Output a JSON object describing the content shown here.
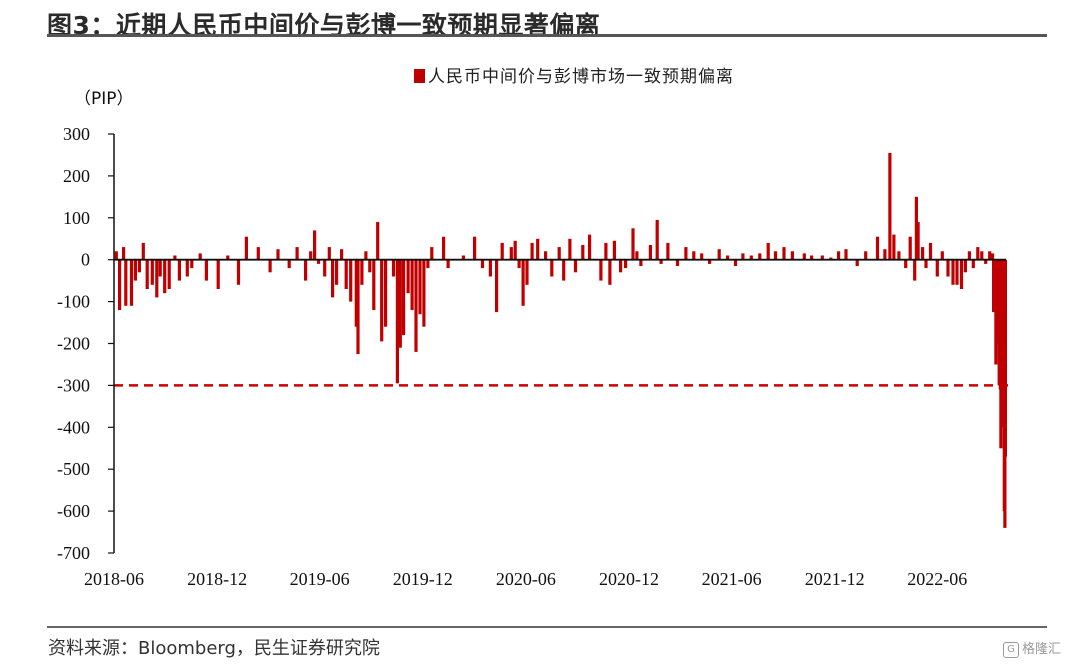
{
  "figure": {
    "title": "图3：近期人民币中间价与彭博一致预期显著偏离",
    "source": "资料来源：Bloomberg，民生证券研究院",
    "watermark": "格隆汇"
  },
  "chart_data": {
    "type": "bar",
    "ylabel": "（PIP）",
    "ylim": [
      -700,
      300
    ],
    "yticks": [
      300,
      200,
      100,
      0,
      -100,
      -200,
      -300,
      -400,
      -500,
      -600,
      -700
    ],
    "x_range": [
      "2018-06",
      "2022-10"
    ],
    "x_tick_labels": [
      "2018-06",
      "2018-12",
      "2019-06",
      "2019-12",
      "2020-06",
      "2020-12",
      "2021-06",
      "2021-12",
      "2022-06"
    ],
    "legend": {
      "position": "top-center"
    },
    "reference_line": {
      "y": -300,
      "style": "dashed",
      "color": "#cc0000"
    },
    "colors": {
      "bar": "#c00000",
      "axis": "#111111",
      "reference": "#cc0000"
    },
    "series": [
      {
        "name": "人民币中间价与彭博市场一致预期偏离",
        "points": [
          [
            "2018-06-05",
            20
          ],
          [
            "2018-06-11",
            -120
          ],
          [
            "2018-06-18",
            30
          ],
          [
            "2018-06-22",
            -110
          ],
          [
            "2018-07-02",
            -110
          ],
          [
            "2018-07-09",
            -50
          ],
          [
            "2018-07-16",
            -30
          ],
          [
            "2018-07-23",
            40
          ],
          [
            "2018-07-30",
            -70
          ],
          [
            "2018-08-08",
            -60
          ],
          [
            "2018-08-16",
            -90
          ],
          [
            "2018-08-22",
            -40
          ],
          [
            "2018-08-30",
            -80
          ],
          [
            "2018-09-07",
            -70
          ],
          [
            "2018-09-17",
            10
          ],
          [
            "2018-09-25",
            -50
          ],
          [
            "2018-10-09",
            -40
          ],
          [
            "2018-10-17",
            -20
          ],
          [
            "2018-11-01",
            15
          ],
          [
            "2018-11-12",
            -50
          ],
          [
            "2018-12-03",
            -70
          ],
          [
            "2018-12-20",
            10
          ],
          [
            "2019-01-08",
            -60
          ],
          [
            "2019-01-22",
            55
          ],
          [
            "2019-02-12",
            30
          ],
          [
            "2019-03-05",
            -30
          ],
          [
            "2019-03-19",
            25
          ],
          [
            "2019-04-08",
            -20
          ],
          [
            "2019-04-22",
            30
          ],
          [
            "2019-05-07",
            -50
          ],
          [
            "2019-05-16",
            20
          ],
          [
            "2019-05-23",
            70
          ],
          [
            "2019-05-30",
            -10
          ],
          [
            "2019-06-10",
            -40
          ],
          [
            "2019-06-18",
            30
          ],
          [
            "2019-06-24",
            -90
          ],
          [
            "2019-07-01",
            -60
          ],
          [
            "2019-07-10",
            25
          ],
          [
            "2019-07-18",
            -70
          ],
          [
            "2019-07-26",
            -100
          ],
          [
            "2019-08-05",
            -160
          ],
          [
            "2019-08-08",
            -225
          ],
          [
            "2019-08-15",
            -60
          ],
          [
            "2019-08-22",
            20
          ],
          [
            "2019-08-29",
            -30
          ],
          [
            "2019-09-05",
            -120
          ],
          [
            "2019-09-12",
            90
          ],
          [
            "2019-09-19",
            -195
          ],
          [
            "2019-09-26",
            -160
          ],
          [
            "2019-10-10",
            -40
          ],
          [
            "2019-10-17",
            -295
          ],
          [
            "2019-10-22",
            -210
          ],
          [
            "2019-10-28",
            -180
          ],
          [
            "2019-11-05",
            -80
          ],
          [
            "2019-11-12",
            -120
          ],
          [
            "2019-11-19",
            -220
          ],
          [
            "2019-11-26",
            -130
          ],
          [
            "2019-12-03",
            -160
          ],
          [
            "2019-12-10",
            -20
          ],
          [
            "2019-12-17",
            30
          ],
          [
            "2020-01-07",
            55
          ],
          [
            "2020-01-15",
            -20
          ],
          [
            "2020-02-11",
            10
          ],
          [
            "2020-03-02",
            55
          ],
          [
            "2020-03-16",
            -20
          ],
          [
            "2020-03-30",
            -40
          ],
          [
            "2020-04-10",
            -125
          ],
          [
            "2020-04-20",
            40
          ],
          [
            "2020-05-06",
            30
          ],
          [
            "2020-05-13",
            45
          ],
          [
            "2020-05-20",
            -20
          ],
          [
            "2020-05-27",
            -110
          ],
          [
            "2020-06-03",
            -60
          ],
          [
            "2020-06-12",
            40
          ],
          [
            "2020-06-22",
            50
          ],
          [
            "2020-07-06",
            20
          ],
          [
            "2020-07-17",
            -40
          ],
          [
            "2020-07-30",
            30
          ],
          [
            "2020-08-07",
            -50
          ],
          [
            "2020-08-18",
            50
          ],
          [
            "2020-08-28",
            -30
          ],
          [
            "2020-09-10",
            35
          ],
          [
            "2020-09-22",
            60
          ],
          [
            "2020-10-12",
            -50
          ],
          [
            "2020-10-21",
            40
          ],
          [
            "2020-10-28",
            -60
          ],
          [
            "2020-11-05",
            45
          ],
          [
            "2020-11-16",
            -30
          ],
          [
            "2020-11-25",
            -20
          ],
          [
            "2020-12-08",
            75
          ],
          [
            "2020-12-15",
            20
          ],
          [
            "2020-12-22",
            -15
          ],
          [
            "2021-01-08",
            35
          ],
          [
            "2021-01-20",
            95
          ],
          [
            "2021-01-27",
            -10
          ],
          [
            "2021-02-08",
            40
          ],
          [
            "2021-02-25",
            -15
          ],
          [
            "2021-03-12",
            30
          ],
          [
            "2021-03-26",
            20
          ],
          [
            "2021-04-09",
            15
          ],
          [
            "2021-04-23",
            -10
          ],
          [
            "2021-05-10",
            25
          ],
          [
            "2021-05-25",
            10
          ],
          [
            "2021-06-08",
            -15
          ],
          [
            "2021-06-21",
            15
          ],
          [
            "2021-07-06",
            10
          ],
          [
            "2021-07-21",
            15
          ],
          [
            "2021-08-05",
            40
          ],
          [
            "2021-08-18",
            20
          ],
          [
            "2021-09-02",
            30
          ],
          [
            "2021-09-17",
            20
          ],
          [
            "2021-10-08",
            15
          ],
          [
            "2021-10-21",
            10
          ],
          [
            "2021-11-09",
            10
          ],
          [
            "2021-11-24",
            5
          ],
          [
            "2021-12-08",
            20
          ],
          [
            "2021-12-21",
            25
          ],
          [
            "2022-01-10",
            -15
          ],
          [
            "2022-01-25",
            20
          ],
          [
            "2022-02-15",
            55
          ],
          [
            "2022-02-28",
            25
          ],
          [
            "2022-03-09",
            255
          ],
          [
            "2022-03-16",
            60
          ],
          [
            "2022-03-25",
            20
          ],
          [
            "2022-04-06",
            -20
          ],
          [
            "2022-04-14",
            55
          ],
          [
            "2022-04-22",
            -50
          ],
          [
            "2022-04-25",
            150
          ],
          [
            "2022-04-28",
            90
          ],
          [
            "2022-05-06",
            30
          ],
          [
            "2022-05-12",
            -20
          ],
          [
            "2022-05-20",
            40
          ],
          [
            "2022-06-01",
            -40
          ],
          [
            "2022-06-10",
            20
          ],
          [
            "2022-06-20",
            -40
          ],
          [
            "2022-06-29",
            -60
          ],
          [
            "2022-07-06",
            -60
          ],
          [
            "2022-07-14",
            -70
          ],
          [
            "2022-07-21",
            -30
          ],
          [
            "2022-07-28",
            20
          ],
          [
            "2022-08-04",
            -20
          ],
          [
            "2022-08-12",
            30
          ],
          [
            "2022-08-19",
            20
          ],
          [
            "2022-08-26",
            -10
          ],
          [
            "2022-09-02",
            20
          ],
          [
            "2022-09-07",
            15
          ],
          [
            "2022-09-09",
            -125
          ],
          [
            "2022-09-13",
            -250
          ],
          [
            "2022-09-16",
            -200
          ],
          [
            "2022-09-19",
            -300
          ],
          [
            "2022-09-21",
            -310
          ],
          [
            "2022-09-22",
            -450
          ],
          [
            "2022-09-23",
            -350
          ],
          [
            "2022-09-26",
            -400
          ],
          [
            "2022-09-28",
            -600
          ],
          [
            "2022-09-29",
            -640
          ],
          [
            "2022-09-30",
            -470
          ]
        ]
      }
    ]
  }
}
